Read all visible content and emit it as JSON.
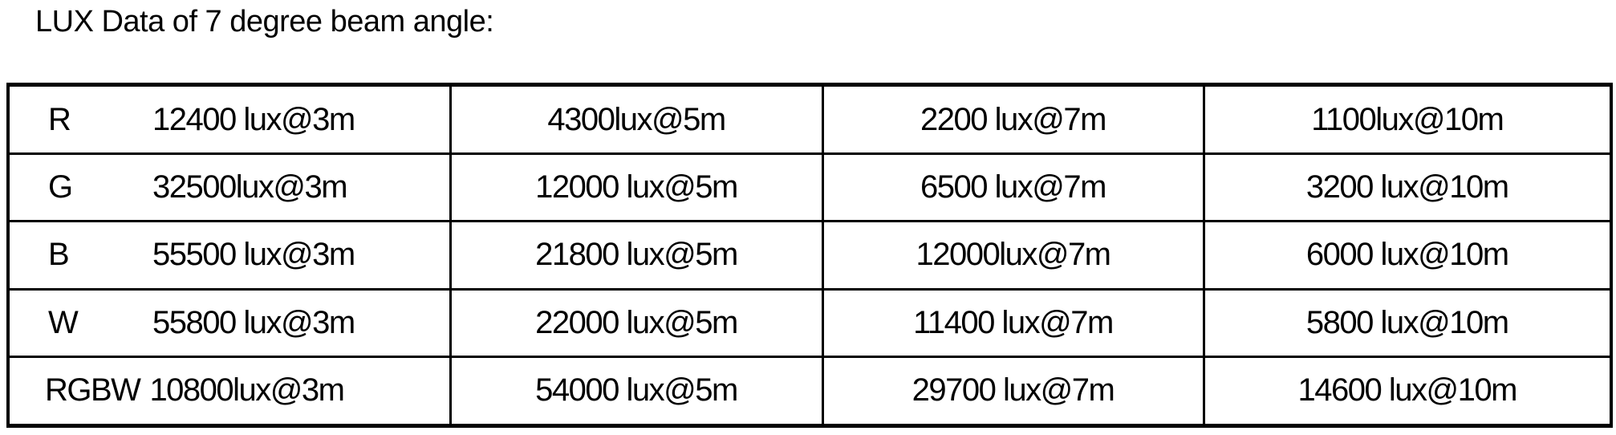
{
  "title": "LUX Data of 7 degree beam angle:",
  "rows": [
    {
      "label": "R",
      "values": [
        "12400 lux@3m",
        "4300lux@5m",
        "2200 lux@7m",
        "1100lux@10m"
      ]
    },
    {
      "label": "G",
      "values": [
        "32500lux@3m",
        "12000 lux@5m",
        "6500 lux@7m",
        "3200 lux@10m"
      ]
    },
    {
      "label": "B",
      "values": [
        "55500 lux@3m",
        "21800 lux@5m",
        "12000lux@7m",
        "6000 lux@10m"
      ]
    },
    {
      "label": "W",
      "values": [
        "55800 lux@3m",
        "22000 lux@5m",
        "11400 lux@7m",
        "5800 lux@10m"
      ]
    },
    {
      "label": "RGBW",
      "values": [
        "10800lux@3m",
        "54000 lux@5m",
        "29700 lux@7m",
        "14600 lux@10m"
      ]
    }
  ]
}
